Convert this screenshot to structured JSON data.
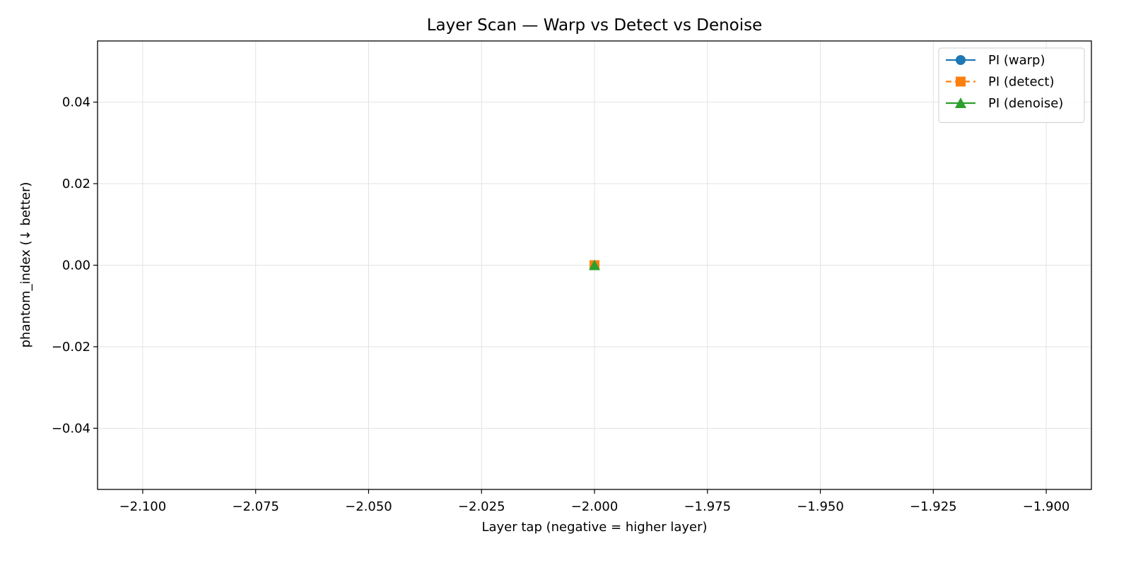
{
  "chart_data": {
    "type": "line",
    "title": "Layer Scan — Warp vs Detect vs Denoise",
    "xlabel": "Layer tap (negative = higher layer)",
    "ylabel": "phantom_index (↓ better)",
    "xlim": [
      -2.11,
      -1.89
    ],
    "ylim": [
      -0.055,
      0.055
    ],
    "xticks": [
      -2.1,
      -2.075,
      -2.05,
      -2.025,
      -2.0,
      -1.975,
      -1.95,
      -1.925,
      -1.9
    ],
    "xtick_labels": [
      "−2.100",
      "−2.075",
      "−2.050",
      "−2.025",
      "−2.000",
      "−1.975",
      "−1.950",
      "−1.925",
      "−1.900"
    ],
    "yticks": [
      0.04,
      0.02,
      0.0,
      -0.02,
      -0.04
    ],
    "ytick_labels": [
      "0.04",
      "0.02",
      "0.00",
      "−0.02",
      "−0.04"
    ],
    "grid": true,
    "legend_position": "top-right",
    "series": [
      {
        "name": "PI (warp)",
        "x": [
          -2.0
        ],
        "y": [
          0.0
        ],
        "color": "#1f77b4",
        "marker": "circle",
        "linestyle": "solid"
      },
      {
        "name": "PI (detect)",
        "x": [
          -2.0
        ],
        "y": [
          0.0
        ],
        "color": "#ff7f0e",
        "marker": "square",
        "linestyle": "dashed"
      },
      {
        "name": "PI (denoise)",
        "x": [
          -2.0
        ],
        "y": [
          0.0
        ],
        "color": "#2ca02c",
        "marker": "triangle",
        "linestyle": "solid"
      }
    ]
  }
}
